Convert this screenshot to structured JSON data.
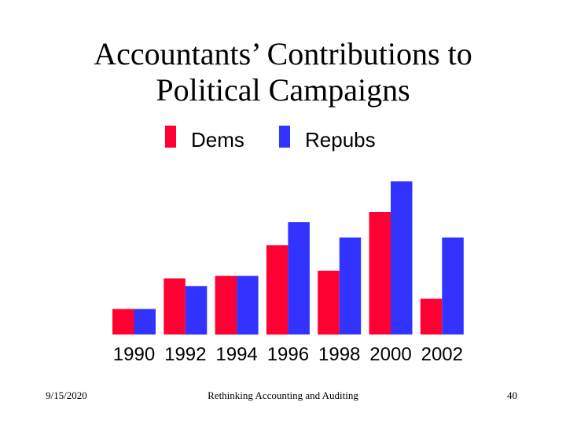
{
  "slide": {
    "title_line1": "Accountants’ Contributions to",
    "title_line2": "Political Campaigns",
    "footer_date": "9/15/2020",
    "footer_center": "Rethinking Accounting and Auditing",
    "footer_page": "40"
  },
  "chart_data": {
    "type": "bar",
    "categories": [
      "1990",
      "1992",
      "1994",
      "1996",
      "1998",
      "2000",
      "2002"
    ],
    "series": [
      {
        "name": "Dems",
        "color": "#ff0033",
        "values": [
          1.0,
          2.2,
          2.3,
          3.5,
          2.5,
          4.8,
          1.4
        ]
      },
      {
        "name": "Repubs",
        "color": "#3333ff",
        "values": [
          1.0,
          1.9,
          2.3,
          4.4,
          3.8,
          6.0,
          3.8
        ]
      }
    ],
    "ylim": [
      0,
      6
    ],
    "grid": false,
    "legend": "top-center"
  }
}
